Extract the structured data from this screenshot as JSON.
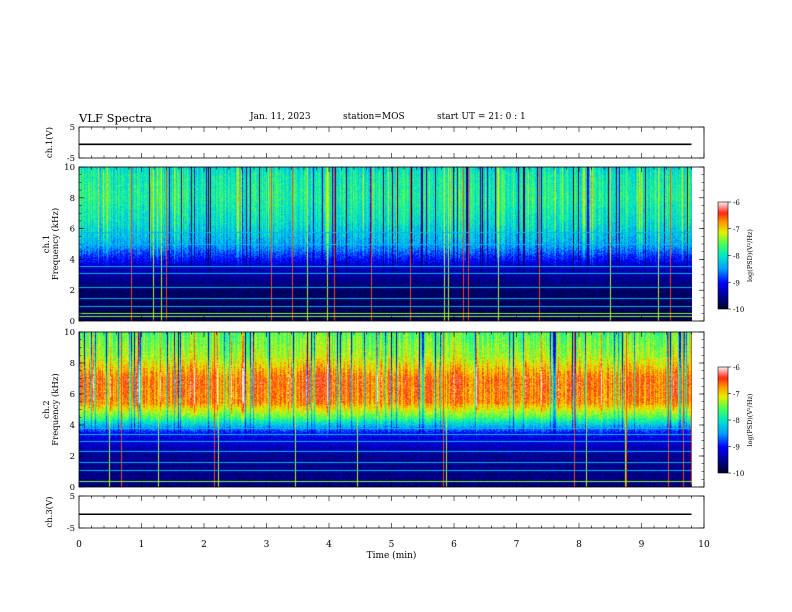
{
  "header": {
    "title": "VLF Spectra",
    "date": "Jan. 11, 2023",
    "station": "station=MOS",
    "start": "start UT =  21: 0 : 1"
  },
  "chart_data": [
    {
      "type": "line",
      "name": "ch1-waveform",
      "ylabel": "ch.1(V)",
      "ylim": [
        -5,
        5
      ],
      "yticks": [
        "5",
        "-5"
      ],
      "xlim": [
        0,
        10
      ],
      "series": [
        {
          "x": [
            0,
            9.8
          ],
          "y": [
            -0.6,
            -0.6
          ]
        }
      ],
      "line_color": "#000000"
    },
    {
      "type": "heatmap",
      "name": "ch1-spectrogram",
      "ylabel": "ch.1",
      "ylabel2": "Frequency (kHz)",
      "ylim": [
        0,
        10
      ],
      "yticks": [
        "0",
        "2",
        "4",
        "6",
        "8",
        "10"
      ],
      "xlim": [
        0,
        10
      ],
      "data_end_min": 9.8,
      "colorbar": {
        "label": "log(PSD)(V²/Hz)",
        "range": [
          -10,
          -6
        ],
        "ticks": [
          "-6",
          "-7",
          "-8",
          "-9",
          "-10"
        ]
      },
      "profile_by_freq_khz": [
        {
          "f": 0.0,
          "v": -9.8
        },
        {
          "f": 2.0,
          "v": -9.7
        },
        {
          "f": 3.5,
          "v": -9.3
        },
        {
          "f": 5.0,
          "v": -8.4
        },
        {
          "f": 6.5,
          "v": -8.0
        },
        {
          "f": 8.0,
          "v": -7.8
        },
        {
          "f": 9.5,
          "v": -7.9
        },
        {
          "f": 10.0,
          "v": -8.1
        }
      ],
      "horizontal_lines_khz": [
        0.3,
        0.5,
        1.0,
        1.5,
        2.2,
        3.1,
        3.6,
        5.0,
        5.8
      ]
    },
    {
      "type": "heatmap",
      "name": "ch2-spectrogram",
      "ylabel": "ch.2",
      "ylabel2": "Frequency (kHz)",
      "ylim": [
        0,
        10
      ],
      "yticks": [
        "0",
        "2",
        "4",
        "6",
        "8",
        "10"
      ],
      "xlim": [
        0,
        10
      ],
      "data_end_min": 9.8,
      "colorbar": {
        "label": "log(PSD)(V²/Hz)",
        "range": [
          -10,
          -6
        ],
        "ticks": [
          "-6",
          "-7",
          "-8",
          "-9",
          "-10"
        ]
      },
      "profile_by_freq_khz": [
        {
          "f": 0.0,
          "v": -9.6
        },
        {
          "f": 2.0,
          "v": -9.5
        },
        {
          "f": 3.5,
          "v": -9.0
        },
        {
          "f": 4.5,
          "v": -7.6
        },
        {
          "f": 5.5,
          "v": -6.7
        },
        {
          "f": 7.0,
          "v": -6.6
        },
        {
          "f": 8.5,
          "v": -7.3
        },
        {
          "f": 10.0,
          "v": -7.6
        }
      ],
      "horizontal_lines_khz": [
        0.4,
        1.1,
        1.6,
        2.3,
        3.0,
        3.4,
        3.8
      ]
    },
    {
      "type": "line",
      "name": "ch3-waveform",
      "ylabel": "ch.3(V)",
      "ylim": [
        -5,
        5
      ],
      "yticks": [
        "5",
        "-5"
      ],
      "xlim": [
        0,
        10
      ],
      "xlabel": "Time (min)",
      "xticks": [
        "0",
        "1",
        "2",
        "3",
        "4",
        "5",
        "6",
        "7",
        "8",
        "9",
        "10"
      ],
      "series": [
        {
          "x": [
            0,
            9.8
          ],
          "y": [
            -0.7,
            -0.7
          ]
        }
      ],
      "line_color": "#000000"
    }
  ]
}
